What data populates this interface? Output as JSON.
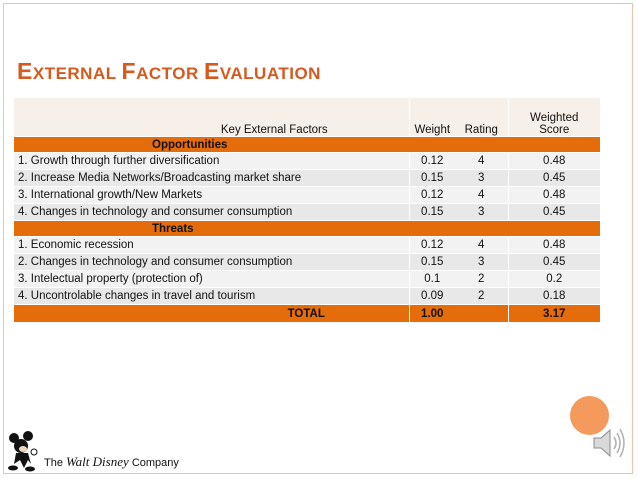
{
  "slide": {
    "title_parts": [
      {
        "text": "E",
        "size": "big"
      },
      {
        "text": "XTERNAL ",
        "size": "small"
      },
      {
        "text": "F",
        "size": "big"
      },
      {
        "text": "ACTOR ",
        "size": "small"
      },
      {
        "text": "E",
        "size": "big"
      },
      {
        "text": "VALUATION",
        "size": "small"
      }
    ]
  },
  "table": {
    "headers": {
      "factor": "Key External Factors",
      "weight": "Weight",
      "rating": "Rating",
      "score_line1": "Weighted",
      "score_line2": "Score"
    },
    "sections": [
      {
        "label": "Opportunities",
        "rows": [
          {
            "factor": "1. Growth through further diversification",
            "weight": "0.12",
            "rating": "4",
            "score": "0.48"
          },
          {
            "factor": "2. Increase Media Networks/Broadcasting market share",
            "weight": "0.15",
            "rating": "3",
            "score": "0.45"
          },
          {
            "factor": "3. International growth/New Markets",
            "weight": "0.12",
            "rating": "4",
            "score": "0.48"
          },
          {
            "factor": "4. Changes in technology and consumer consumption",
            "weight": "0.15",
            "rating": "3",
            "score": "0.45"
          }
        ]
      },
      {
        "label": "Threats",
        "rows": [
          {
            "factor": "1. Economic recession",
            "weight": "0.12",
            "rating": "4",
            "score": "0.48"
          },
          {
            "factor": "2. Changes in technology and consumer consumption",
            "weight": "0.15",
            "rating": "3",
            "score": "0.45"
          },
          {
            "factor": "3. Intelectual property (protection of)",
            "weight": "0.1",
            "rating": "2",
            "score": "0.2"
          },
          {
            "factor": "4. Uncontrolable changes in travel and tourism",
            "weight": "0.09",
            "rating": "2",
            "score": "0.18"
          }
        ]
      }
    ],
    "total": {
      "label": "TOTAL",
      "weight": "1.00",
      "rating": "",
      "score": "3.17"
    }
  },
  "logo": {
    "prefix": "The",
    "brand": "Walt Disney",
    "suffix": "Company"
  },
  "colors": {
    "accent": "#e46c0a",
    "title": "#d65a1e",
    "circle": "#f39a5c"
  },
  "icons": {
    "speaker": "speaker-icon",
    "mascot": "mickey-mouse-logo-icon"
  }
}
